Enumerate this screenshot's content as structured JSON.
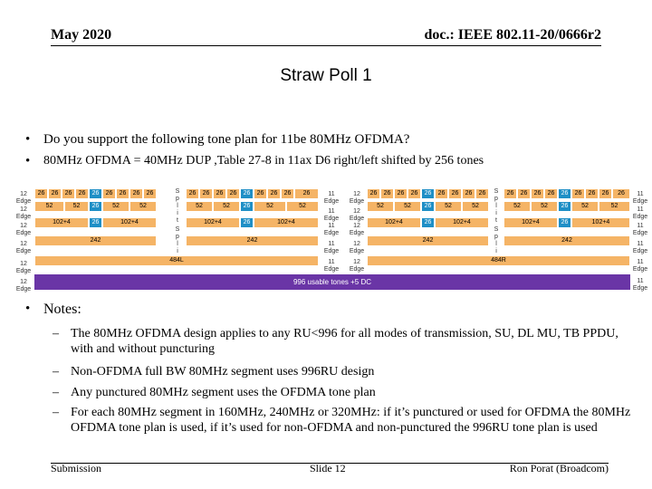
{
  "header": {
    "date": "May 2020",
    "doc": "doc.: IEEE 802.11-20/0666r2"
  },
  "title": "Straw Poll 1",
  "bullets": [
    "Do you support the following tone plan for 11be 80MHz OFDMA?",
    "80MHz OFDMA = 40MHz DUP ,Table 27-8 in 11ax D6 right/left shifted by 256 tones"
  ],
  "diagram": {
    "edge_left": "12 Edge",
    "edge_right": "11 Edge",
    "ru26": "26",
    "ru52": "52",
    "ru106": "102+4",
    "ru242": "242",
    "ru484_left": "484L",
    "ru484_right": "484R",
    "side_label": "S p l i t",
    "bar996": "996 usable tones +5 DC",
    "colors": {
      "orange": "#f5b466",
      "blue": "#1f8fc6",
      "purple": "#6a35a6"
    }
  },
  "notes": {
    "heading": "Notes:",
    "items": [
      "The 80MHz OFDMA design applies to any RU<996 for all modes of transmission, SU, DL MU, TB PPDU, with and without puncturing",
      "Non-OFDMA full BW 80MHz segment uses 996RU design",
      "Any punctured 80MHz segment uses the OFDMA tone plan",
      "For each 80MHz segment in 160MHz, 240MHz or 320MHz: if it’s punctured or used for OFDMA the 80MHz OFDMA tone plan is used, if it’s used for non-OFDMA and non-punctured the 996RU tone plan is used"
    ]
  },
  "footer": {
    "left": "Submission",
    "center": "Slide 12",
    "right": "Ron Porat (Broadcom)"
  }
}
